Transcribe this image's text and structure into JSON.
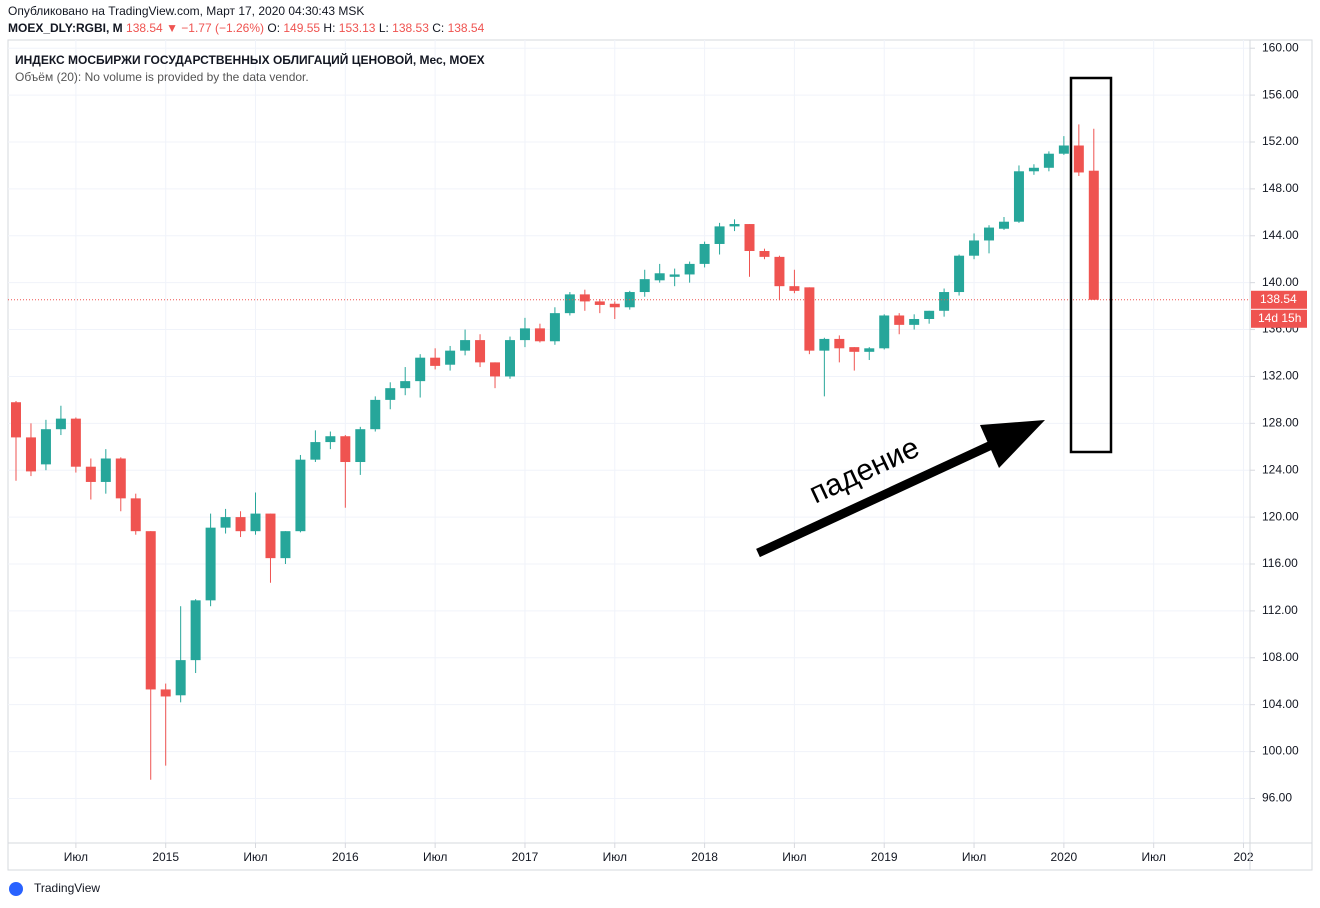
{
  "header": {
    "published": "Опубликовано на TradingView.com, Март 17, 2020 04:30:43 MSK",
    "symbol": "MOEX_DLY:RGBI, M",
    "last": "138.54",
    "change": "▼ −1.77 (−1.26%)",
    "o_label": "O:",
    "o": "149.55",
    "h_label": "H:",
    "h": "153.13",
    "l_label": "L:",
    "l": "138.53",
    "c_label": "C:",
    "c": "138.54"
  },
  "chart_data": {
    "type": "candlestick",
    "title": "ИНДЕКС МОСБИРЖИ ГОСУДАРСТВЕННЫХ ОБЛИГАЦИЙ ЦЕНОВОЙ, Мес, MOEX",
    "subtitle": "Объём (20): No volume is provided by the data vendor.",
    "annotation": "падение",
    "countdown": "14d 15h",
    "up_color": "#26a69a",
    "down_color": "#ef5350",
    "grid": true,
    "x": [
      "2014-03",
      "2014-04",
      "2014-05",
      "2014-06",
      "2014-07",
      "2014-08",
      "2014-09",
      "2014-10",
      "2014-11",
      "2014-12",
      "2015-01",
      "2015-02",
      "2015-03",
      "2015-04",
      "2015-05",
      "2015-06",
      "2015-07",
      "2015-08",
      "2015-09",
      "2015-10",
      "2015-11",
      "2015-12",
      "2016-01",
      "2016-02",
      "2016-03",
      "2016-04",
      "2016-05",
      "2016-06",
      "2016-07",
      "2016-08",
      "2016-09",
      "2016-10",
      "2016-11",
      "2016-12",
      "2017-01",
      "2017-02",
      "2017-03",
      "2017-04",
      "2017-05",
      "2017-06",
      "2017-07",
      "2017-08",
      "2017-09",
      "2017-10",
      "2017-11",
      "2017-12",
      "2018-01",
      "2018-02",
      "2018-03",
      "2018-04",
      "2018-05",
      "2018-06",
      "2018-07",
      "2018-08",
      "2018-09",
      "2018-10",
      "2018-11",
      "2018-12",
      "2019-01",
      "2019-02",
      "2019-03",
      "2019-04",
      "2019-05",
      "2019-06",
      "2019-07",
      "2019-08",
      "2019-09",
      "2019-10",
      "2019-11",
      "2019-12",
      "2020-01",
      "2020-02",
      "2020-03"
    ],
    "open": [
      129.8,
      126.8,
      124.5,
      127.5,
      128.4,
      124.3,
      123,
      125,
      121.6,
      118.8,
      105.3,
      104.8,
      107.8,
      112.9,
      119.1,
      120,
      118.8,
      120.3,
      116.5,
      118.8,
      124.9,
      126.4,
      126.9,
      124.7,
      127.5,
      130,
      131,
      131.6,
      133.6,
      133,
      134.2,
      135.1,
      133.2,
      132,
      135.1,
      136.1,
      135,
      137.4,
      139,
      138.4,
      138.2,
      137.9,
      139.2,
      140.2,
      140.5,
      140.7,
      141.6,
      143.3,
      144.8,
      145,
      142.7,
      142.2,
      139.7,
      139.6,
      134.2,
      135.2,
      134.5,
      134.1,
      134.4,
      137.2,
      136.4,
      136.9,
      137.6,
      139.2,
      142.3,
      143.6,
      144.6,
      145.2,
      149.5,
      149.8,
      151,
      151.7,
      149.55
    ],
    "high": [
      129.9,
      128,
      128.3,
      129.5,
      128.5,
      125,
      125.8,
      125.1,
      122,
      118.8,
      105.8,
      112.4,
      113,
      120.3,
      120.7,
      120.5,
      122.1,
      120.3,
      118.8,
      125.3,
      127.4,
      127.3,
      127,
      127.7,
      130.3,
      131.5,
      132.8,
      133.9,
      134.4,
      134.6,
      136,
      135.6,
      133.2,
      135.4,
      137,
      136.5,
      137.9,
      139.2,
      139.4,
      138.6,
      138.4,
      139.3,
      141.1,
      141.6,
      141.2,
      141.8,
      143.5,
      145.1,
      145.4,
      145,
      142.9,
      142.3,
      141.1,
      139.6,
      135.3,
      135.5,
      134.5,
      134.5,
      137.3,
      137.4,
      137.3,
      137.6,
      139.5,
      142.4,
      144.2,
      144.9,
      145.6,
      150,
      150.1,
      151.2,
      152.5,
      153.5,
      153.13
    ],
    "low": [
      123.1,
      123.5,
      124,
      127,
      123.8,
      121.5,
      122,
      120.5,
      118.5,
      97.6,
      98.8,
      104.2,
      106.7,
      112.4,
      118.6,
      118.3,
      118.5,
      114.4,
      116,
      118.7,
      124.7,
      125.8,
      120.8,
      123.6,
      127.3,
      129.2,
      130.4,
      130.2,
      132.6,
      132.5,
      133.8,
      132.8,
      131,
      131.8,
      134.5,
      134.9,
      134.7,
      137.2,
      137.6,
      137.4,
      136.9,
      137.7,
      138.8,
      140,
      139.7,
      140,
      141.3,
      142.4,
      144.4,
      140.5,
      142,
      138.5,
      139.1,
      133.9,
      130.3,
      133.2,
      132.5,
      133.4,
      134.3,
      135.6,
      136,
      136.5,
      137.1,
      138.9,
      142,
      142.5,
      144.5,
      145.1,
      149.2,
      149.5,
      150.9,
      149.1,
      138.53
    ],
    "close": [
      126.8,
      123.9,
      127.5,
      128.4,
      124.3,
      123,
      125,
      121.6,
      118.8,
      105.3,
      104.7,
      107.8,
      112.9,
      119.1,
      120,
      118.8,
      120.3,
      116.5,
      118.8,
      124.9,
      126.4,
      126.9,
      124.7,
      127.5,
      130,
      131,
      131.6,
      133.6,
      132.9,
      134.2,
      135.1,
      133.2,
      132,
      135.1,
      136.1,
      135,
      137.4,
      139,
      138.4,
      138.1,
      137.9,
      139.2,
      140.3,
      140.8,
      140.7,
      141.6,
      143.3,
      144.8,
      145,
      142.7,
      142.2,
      139.7,
      139.3,
      134.2,
      135.2,
      134.4,
      134.1,
      134.4,
      137.2,
      136.4,
      136.9,
      137.6,
      139.2,
      142.3,
      143.6,
      144.7,
      145.2,
      149.5,
      149.8,
      151,
      151.7,
      149.4,
      138.54
    ],
    "xlim": [
      "2014-03",
      "2021-01"
    ],
    "xticks": [
      {
        "value": "2014-07",
        "label": "Июл"
      },
      {
        "value": "2015-01",
        "label": "2015"
      },
      {
        "value": "2015-07",
        "label": "Июл"
      },
      {
        "value": "2016-01",
        "label": "2016"
      },
      {
        "value": "2016-07",
        "label": "Июл"
      },
      {
        "value": "2017-01",
        "label": "2017"
      },
      {
        "value": "2017-07",
        "label": "Июл"
      },
      {
        "value": "2018-01",
        "label": "2018"
      },
      {
        "value": "2018-07",
        "label": "Июл"
      },
      {
        "value": "2019-01",
        "label": "2019"
      },
      {
        "value": "2019-07",
        "label": "Июл"
      },
      {
        "value": "2020-01",
        "label": "2020"
      },
      {
        "value": "2020-07",
        "label": "Июл"
      },
      {
        "value": "2021-01",
        "label": "202"
      }
    ],
    "ylim": [
      92.2,
      160.7
    ],
    "yticks": [
      {
        "value": 96,
        "label": "96.00"
      },
      {
        "value": 100,
        "label": "100.00"
      },
      {
        "value": 104,
        "label": "104.00"
      },
      {
        "value": 108,
        "label": "108.00"
      },
      {
        "value": 112,
        "label": "112.00"
      },
      {
        "value": 116,
        "label": "116.00"
      },
      {
        "value": 120,
        "label": "120.00"
      },
      {
        "value": 124,
        "label": "124.00"
      },
      {
        "value": 128,
        "label": "128.00"
      },
      {
        "value": 132,
        "label": "132.00"
      },
      {
        "value": 136,
        "label": "136.00"
      },
      {
        "value": 140,
        "label": "140.00"
      },
      {
        "value": 144,
        "label": "144.00"
      },
      {
        "value": 148,
        "label": "148.00"
      },
      {
        "value": 152,
        "label": "152.00"
      },
      {
        "value": 156,
        "label": "156.00"
      },
      {
        "value": 160,
        "label": "160.00"
      }
    ]
  }
}
